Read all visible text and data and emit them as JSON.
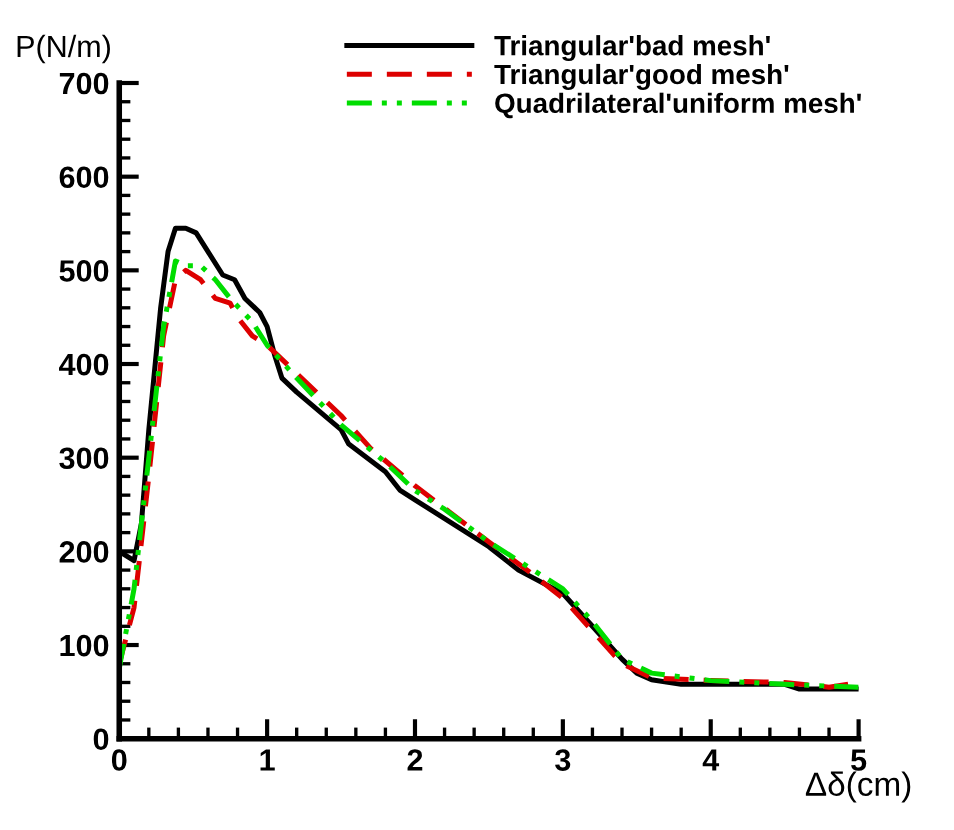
{
  "chart_data": {
    "type": "line",
    "xlabel": "Δδ(cm)",
    "ylabel": "P(N/m)",
    "xlim": [
      0,
      5
    ],
    "ylim": [
      0,
      700
    ],
    "xticks": [
      0,
      1,
      2,
      3,
      4,
      5
    ],
    "yticks": [
      0,
      100,
      200,
      300,
      400,
      500,
      600,
      700
    ],
    "grid": false,
    "legend": "top right",
    "marker": "none",
    "series": [
      {
        "name": "Triangular'bad mesh'",
        "color": "#000000",
        "line_style": "solid",
        "x": [
          0,
          0.1,
          0.15,
          0.2,
          0.28,
          0.33,
          0.38,
          0.45,
          0.52,
          0.6,
          0.7,
          0.78,
          0.85,
          0.95,
          1.0,
          1.05,
          1.1,
          1.2,
          1.5,
          1.55,
          1.8,
          1.9,
          2.0,
          2.5,
          2.7,
          3.0,
          3.2,
          3.4,
          3.5,
          3.6,
          3.8,
          4.5,
          4.6,
          5.0
        ],
        "values": [
          200,
          190,
          230,
          330,
          460,
          520,
          545,
          545,
          540,
          520,
          495,
          490,
          470,
          455,
          440,
          410,
          385,
          370,
          330,
          315,
          285,
          265,
          255,
          205,
          180,
          155,
          120,
          85,
          70,
          63,
          58,
          58,
          53,
          53
        ]
      },
      {
        "name": "Triangular'good mesh'",
        "color": "#dd0000",
        "line_style": "dashed",
        "x": [
          0,
          0.1,
          0.2,
          0.3,
          0.38,
          0.45,
          0.55,
          0.65,
          0.75,
          0.8,
          0.9,
          1.0,
          1.2,
          1.5,
          1.7,
          2.0,
          2.5,
          2.8,
          3.0,
          3.2,
          3.4,
          3.6,
          4.0,
          4.5,
          4.8,
          5.0
        ],
        "values": [
          80,
          140,
          280,
          430,
          490,
          500,
          490,
          470,
          465,
          450,
          430,
          420,
          390,
          345,
          310,
          270,
          210,
          175,
          150,
          115,
          80,
          65,
          62,
          60,
          55,
          60
        ]
      },
      {
        "name": "Quadrilateral'uniform mesh'",
        "color": "#00dd00",
        "line_style": "dashdot",
        "x": [
          0,
          0.1,
          0.2,
          0.3,
          0.38,
          0.45,
          0.55,
          0.65,
          0.75,
          0.9,
          1.0,
          1.2,
          1.5,
          1.8,
          2.0,
          2.2,
          2.5,
          2.7,
          3.0,
          3.2,
          3.4,
          3.6,
          4.0,
          4.5,
          5.0
        ],
        "values": [
          75,
          160,
          300,
          440,
          510,
          505,
          505,
          490,
          470,
          445,
          420,
          385,
          335,
          295,
          265,
          245,
          210,
          190,
          160,
          125,
          85,
          70,
          62,
          58,
          55
        ]
      }
    ]
  }
}
